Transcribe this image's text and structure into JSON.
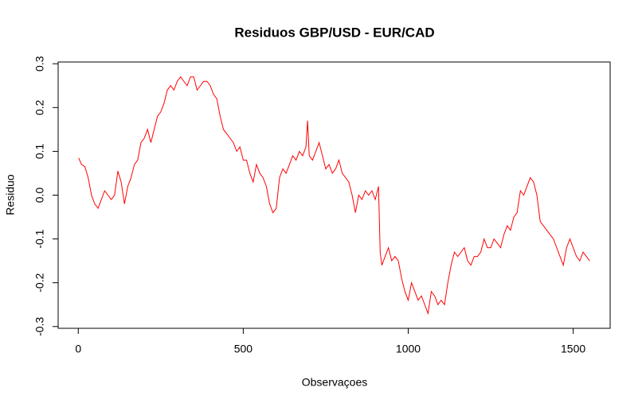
{
  "chart_data": {
    "type": "line",
    "title": "Residuos GBP/USD - EUR/CAD",
    "xlabel": "Observaçoes",
    "ylabel": "Residuo",
    "x": [
      1,
      10,
      20,
      30,
      40,
      50,
      60,
      70,
      80,
      90,
      100,
      110,
      120,
      130,
      140,
      150,
      160,
      170,
      180,
      190,
      200,
      210,
      220,
      230,
      240,
      250,
      260,
      270,
      280,
      290,
      300,
      310,
      320,
      330,
      340,
      350,
      360,
      370,
      380,
      390,
      400,
      410,
      420,
      430,
      440,
      450,
      460,
      470,
      480,
      490,
      500,
      510,
      520,
      530,
      540,
      550,
      560,
      570,
      580,
      590,
      600,
      610,
      620,
      630,
      640,
      650,
      660,
      670,
      680,
      690,
      695,
      700,
      710,
      720,
      730,
      740,
      750,
      760,
      770,
      780,
      790,
      800,
      810,
      820,
      830,
      840,
      850,
      860,
      870,
      880,
      890,
      900,
      910,
      915,
      920,
      930,
      940,
      950,
      960,
      970,
      980,
      990,
      1000,
      1010,
      1020,
      1030,
      1040,
      1050,
      1060,
      1070,
      1080,
      1090,
      1100,
      1110,
      1120,
      1130,
      1140,
      1150,
      1160,
      1170,
      1180,
      1190,
      1200,
      1210,
      1220,
      1230,
      1240,
      1250,
      1260,
      1270,
      1280,
      1290,
      1300,
      1310,
      1320,
      1330,
      1340,
      1350,
      1360,
      1370,
      1380,
      1390,
      1400,
      1410,
      1420,
      1430,
      1440,
      1450,
      1460,
      1470,
      1480,
      1490,
      1500,
      1510,
      1520,
      1530,
      1540,
      1550
    ],
    "series": [
      {
        "name": "Residuo",
        "color": "#ff0000",
        "values": [
          0.085,
          0.07,
          0.065,
          0.04,
          0.0,
          -0.02,
          -0.03,
          -0.01,
          0.01,
          0.0,
          -0.01,
          0.0,
          0.055,
          0.03,
          -0.02,
          0.02,
          0.04,
          0.07,
          0.08,
          0.12,
          0.13,
          0.15,
          0.12,
          0.15,
          0.18,
          0.19,
          0.21,
          0.24,
          0.25,
          0.24,
          0.26,
          0.27,
          0.26,
          0.25,
          0.27,
          0.27,
          0.24,
          0.25,
          0.26,
          0.26,
          0.25,
          0.23,
          0.22,
          0.18,
          0.15,
          0.14,
          0.13,
          0.12,
          0.1,
          0.11,
          0.08,
          0.08,
          0.05,
          0.03,
          0.07,
          0.05,
          0.04,
          0.02,
          -0.02,
          -0.04,
          -0.03,
          0.04,
          0.06,
          0.05,
          0.07,
          0.09,
          0.08,
          0.1,
          0.09,
          0.11,
          0.17,
          0.09,
          0.08,
          0.1,
          0.12,
          0.09,
          0.06,
          0.07,
          0.05,
          0.06,
          0.08,
          0.05,
          0.04,
          0.03,
          0.0,
          -0.04,
          0.0,
          -0.01,
          0.01,
          0.0,
          0.01,
          -0.01,
          0.02,
          -0.13,
          -0.16,
          -0.14,
          -0.12,
          -0.15,
          -0.14,
          -0.15,
          -0.19,
          -0.22,
          -0.24,
          -0.2,
          -0.22,
          -0.24,
          -0.23,
          -0.25,
          -0.27,
          -0.22,
          -0.23,
          -0.25,
          -0.24,
          -0.25,
          -0.2,
          -0.16,
          -0.13,
          -0.14,
          -0.13,
          -0.12,
          -0.15,
          -0.16,
          -0.14,
          -0.14,
          -0.13,
          -0.1,
          -0.12,
          -0.12,
          -0.1,
          -0.11,
          -0.12,
          -0.09,
          -0.07,
          -0.08,
          -0.05,
          -0.04,
          0.01,
          0.0,
          0.02,
          0.04,
          0.03,
          0.0,
          -0.06,
          -0.07,
          -0.08,
          -0.09,
          -0.1,
          -0.12,
          -0.14,
          -0.16,
          -0.12,
          -0.1,
          -0.12,
          -0.14,
          -0.15,
          -0.13,
          -0.14,
          -0.15
        ]
      }
    ],
    "xlim": [
      -61,
      1612
    ],
    "xticks": [
      0,
      500,
      1000,
      1500
    ],
    "ylim": [
      -0.304,
      0.304
    ],
    "yticks": [
      -0.3,
      -0.2,
      -0.1,
      0.0,
      0.1,
      0.2,
      0.3
    ]
  }
}
